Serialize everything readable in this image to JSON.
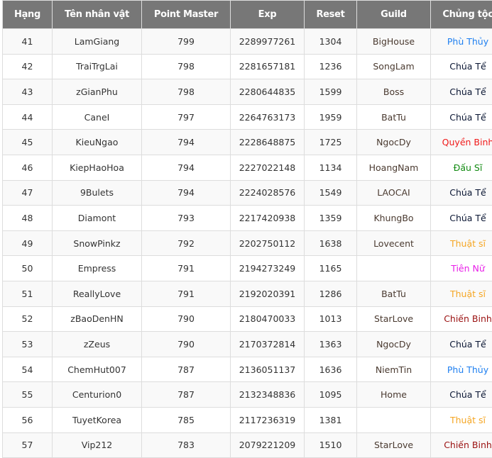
{
  "columns": [
    "Hạng",
    "Tên nhân vật",
    "Point Master",
    "Exp",
    "Reset",
    "Guild",
    "Chủng tộc"
  ],
  "class_colors": {
    "Phù Thủy": "#1e7ff0",
    "Chúa Tể": "#0a1633",
    "Quyền Binh": "#f01a1a",
    "Đấu Sĩ": "#108a10",
    "Thuật sĩ": "#f5a623",
    "Tiên Nữ": "#e81ee8",
    "Chiến Binh": "#9a1010"
  },
  "rows": [
    {
      "rank": "41",
      "name": "LamGiang",
      "pm": "799",
      "exp": "2289977261",
      "reset": "1304",
      "guild": "BigHouse",
      "cls": "Phù Thủy"
    },
    {
      "rank": "42",
      "name": "TraiTrgLai",
      "pm": "798",
      "exp": "2281657181",
      "reset": "1236",
      "guild": "SongLam",
      "cls": "Chúa Tể"
    },
    {
      "rank": "43",
      "name": "zGianPhu",
      "pm": "798",
      "exp": "2280644835",
      "reset": "1599",
      "guild": "Boss",
      "cls": "Chúa Tể"
    },
    {
      "rank": "44",
      "name": "CaneI",
      "pm": "797",
      "exp": "2264763173",
      "reset": "1959",
      "guild": "BatTu",
      "cls": "Chúa Tể"
    },
    {
      "rank": "45",
      "name": "KieuNgao",
      "pm": "794",
      "exp": "2228648875",
      "reset": "1725",
      "guild": "NgocDy",
      "cls": "Quyền Binh"
    },
    {
      "rank": "46",
      "name": "KiepHaoHoa",
      "pm": "794",
      "exp": "2227022148",
      "reset": "1134",
      "guild": "HoangNam",
      "cls": "Đấu Sĩ"
    },
    {
      "rank": "47",
      "name": "9Bulets",
      "pm": "794",
      "exp": "2224028576",
      "reset": "1549",
      "guild": "LAOCAI",
      "cls": "Chúa Tể"
    },
    {
      "rank": "48",
      "name": "Diamont",
      "pm": "793",
      "exp": "2217420938",
      "reset": "1359",
      "guild": "KhungBo",
      "cls": "Chúa Tể"
    },
    {
      "rank": "49",
      "name": "SnowPinkz",
      "pm": "792",
      "exp": "2202750112",
      "reset": "1638",
      "guild": "Lovecent",
      "cls": "Thuật sĩ"
    },
    {
      "rank": "50",
      "name": "Empress",
      "pm": "791",
      "exp": "2194273249",
      "reset": "1165",
      "guild": "",
      "cls": "Tiên Nữ"
    },
    {
      "rank": "51",
      "name": "ReallyLove",
      "pm": "791",
      "exp": "2192020391",
      "reset": "1286",
      "guild": "BatTu",
      "cls": "Thuật sĩ"
    },
    {
      "rank": "52",
      "name": "zBaoDenHN",
      "pm": "790",
      "exp": "2180470033",
      "reset": "1013",
      "guild": "StarLove",
      "cls": "Chiến Binh"
    },
    {
      "rank": "53",
      "name": "zZeus",
      "pm": "790",
      "exp": "2170372814",
      "reset": "1363",
      "guild": "NgocDy",
      "cls": "Chúa Tể"
    },
    {
      "rank": "54",
      "name": "ChemHut007",
      "pm": "787",
      "exp": "2136051137",
      "reset": "1636",
      "guild": "NiemTin",
      "cls": "Phù Thủy"
    },
    {
      "rank": "55",
      "name": "Centurion0",
      "pm": "787",
      "exp": "2132348836",
      "reset": "1095",
      "guild": "Home",
      "cls": "Chúa Tể"
    },
    {
      "rank": "56",
      "name": "TuyetKorea",
      "pm": "785",
      "exp": "2117236319",
      "reset": "1381",
      "guild": "",
      "cls": "Thuật sĩ"
    },
    {
      "rank": "57",
      "name": "Vip212",
      "pm": "783",
      "exp": "2079221209",
      "reset": "1510",
      "guild": "StarLove",
      "cls": "Chiến Binh"
    }
  ]
}
